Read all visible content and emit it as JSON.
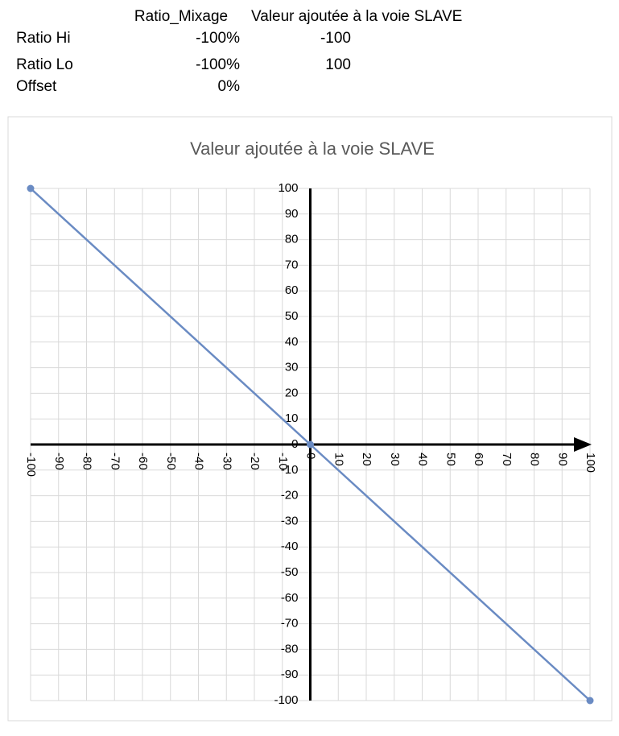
{
  "table": {
    "header": [
      "Ratio_Mixage",
      "Valeur ajoutée à la voie SLAVE"
    ],
    "rows": [
      [
        "Ratio Hi",
        "-100%",
        "-100"
      ],
      [
        "Ratio Lo",
        "-100%",
        "100"
      ],
      [
        "Offset",
        "0%"
      ]
    ]
  },
  "chart_data": {
    "type": "line",
    "title": "Valeur ajoutée à la voie SLAVE",
    "x": [
      -100,
      0,
      100
    ],
    "series": [
      {
        "color": "#6a8bc3",
        "values": [
          100,
          0,
          -100
        ]
      }
    ],
    "xlim": [
      -100,
      100
    ],
    "ylim": [
      -100,
      100
    ],
    "xticks": [
      -100,
      -90,
      -80,
      -70,
      -60,
      -50,
      -40,
      -30,
      -20,
      -10,
      0,
      10,
      20,
      30,
      40,
      50,
      60,
      70,
      80,
      90,
      100
    ],
    "yticks": [
      -100,
      -90,
      -80,
      -70,
      -60,
      -50,
      -40,
      -30,
      -20,
      -10,
      0,
      10,
      20,
      30,
      40,
      50,
      60,
      70,
      80,
      90,
      100
    ],
    "grid": true,
    "markers": true
  }
}
